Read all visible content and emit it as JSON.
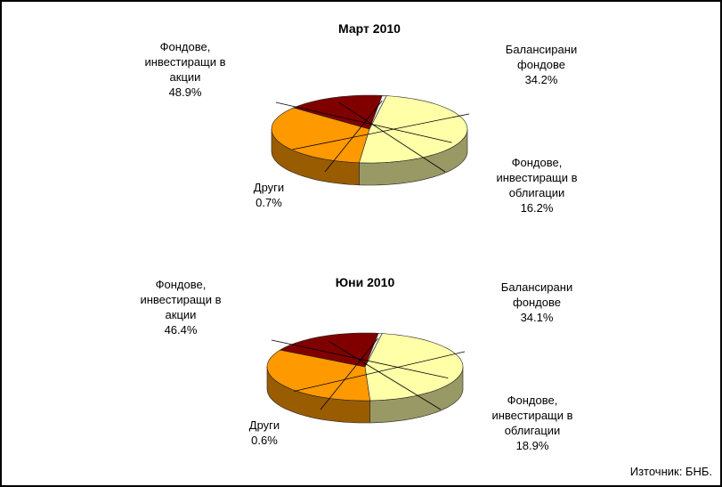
{
  "chart_data": [
    {
      "type": "pie",
      "title": "Март 2010",
      "categories": [
        "Фондове, инвестиращи в акции",
        "Балансирани фондове",
        "Фондове, инвестиращи в облигации",
        "Други"
      ],
      "values": [
        48.9,
        34.2,
        16.2,
        0.7
      ],
      "value_labels": [
        "48.9%",
        "34.2%",
        "16.2%",
        "0.7%"
      ],
      "colors": [
        "#FFFFA8",
        "#FF9900",
        "#800000",
        "#F2F2F2"
      ]
    },
    {
      "type": "pie",
      "title": "Юни 2010",
      "categories": [
        "Фондове, инвестиращи в акции",
        "Балансирани фондове",
        "Фондове, инвестиращи в облигации",
        "Други"
      ],
      "values": [
        46.4,
        34.1,
        18.9,
        0.6
      ],
      "value_labels": [
        "46.4%",
        "34.1%",
        "18.9%",
        "0.6%"
      ],
      "colors": [
        "#FFFFA8",
        "#FF9900",
        "#800000",
        "#F2F2F2"
      ]
    }
  ],
  "source": "Източник: БНБ."
}
